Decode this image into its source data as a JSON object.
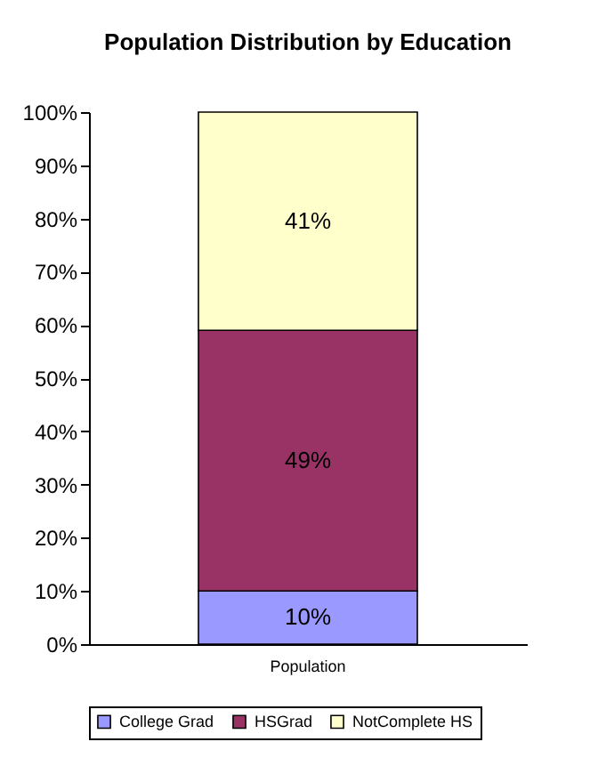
{
  "chart_data": {
    "type": "bar",
    "title": "Population Distribution by Education",
    "categories": [
      "Population"
    ],
    "stacked": true,
    "series": [
      {
        "name": "College Grad",
        "color": "#9999ff",
        "values": [
          10
        ],
        "value_labels": [
          "10%"
        ]
      },
      {
        "name": "HSGrad",
        "color": "#993366",
        "values": [
          49
        ],
        "value_labels": [
          "49%"
        ]
      },
      {
        "name": "NotComplete HS",
        "color": "#ffffcc",
        "values": [
          41
        ],
        "value_labels": [
          "41%"
        ]
      }
    ],
    "ylim": [
      0,
      100
    ],
    "yticks": [
      {
        "value": 0,
        "label": "0%"
      },
      {
        "value": 10,
        "label": "10%"
      },
      {
        "value": 20,
        "label": "20%"
      },
      {
        "value": 30,
        "label": "30%"
      },
      {
        "value": 40,
        "label": "40%"
      },
      {
        "value": 50,
        "label": "50%"
      },
      {
        "value": 60,
        "label": "60%"
      },
      {
        "value": 70,
        "label": "70%"
      },
      {
        "value": 80,
        "label": "80%"
      },
      {
        "value": 90,
        "label": "90%"
      },
      {
        "value": 100,
        "label": "100%"
      }
    ],
    "grid": false,
    "legend": "bottom"
  }
}
